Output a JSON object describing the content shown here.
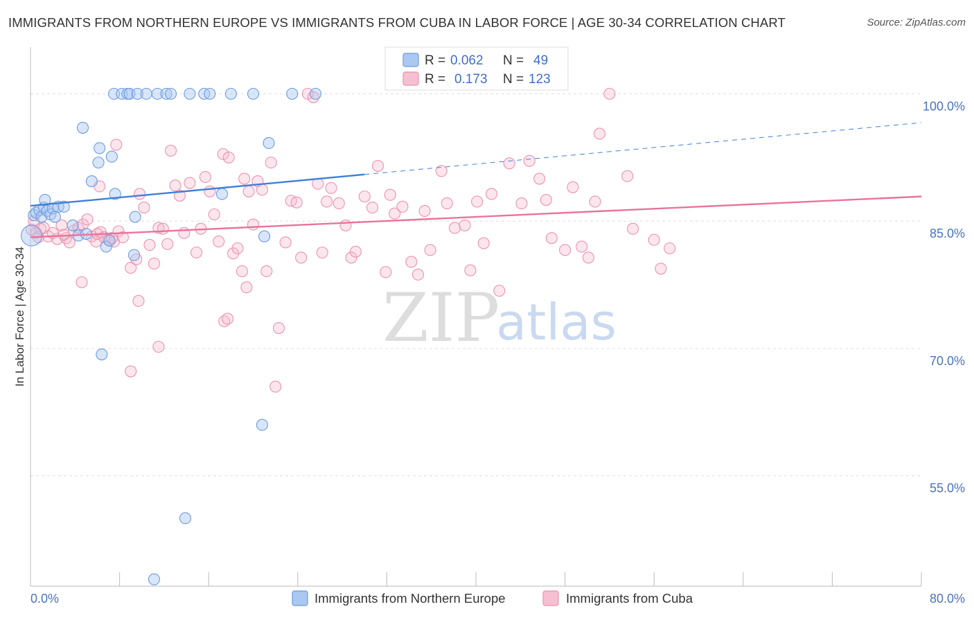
{
  "title": "IMMIGRANTS FROM NORTHERN EUROPE VS IMMIGRANTS FROM CUBA IN LABOR FORCE | AGE 30-34 CORRELATION CHART",
  "source": "Source: ZipAtlas.com",
  "watermark": {
    "zip": "ZIP",
    "atlas": "atlas"
  },
  "colors": {
    "blue": "#3f7fd8",
    "blue_fill": "#aac8f2",
    "pink": "#e8739c",
    "pink_fill": "#f6b7cc",
    "tick_text": "#4a72c4"
  },
  "legend": {
    "r_label": "R =",
    "n_label": "N =",
    "entries": [
      {
        "r": "0.062",
        "n": "49"
      },
      {
        "r": "0.173",
        "n": "123"
      }
    ]
  },
  "chart_data": {
    "type": "scatter",
    "title": "IMMIGRANTS FROM NORTHERN EUROPE VS IMMIGRANTS FROM CUBA IN LABOR FORCE | AGE 30-34 CORRELATION CHART",
    "xlabel": "",
    "ylabel": "In Labor Force | Age 30-34",
    "xlim": [
      0,
      80
    ],
    "ylim": [
      42,
      105.5
    ],
    "y_ticks": [
      {
        "value": 100,
        "label": "100.0%"
      },
      {
        "value": 85,
        "label": "85.0%"
      },
      {
        "value": 70,
        "label": "70.0%"
      },
      {
        "value": 55,
        "label": "55.0%"
      }
    ],
    "x_tick_labels": [
      {
        "value": 0,
        "label": "0.0%"
      },
      {
        "value": 80,
        "label": "80.0%"
      }
    ],
    "x_minor_ticks": [
      0,
      8,
      16,
      24,
      32,
      40,
      48,
      56,
      64,
      72,
      80
    ],
    "series": [
      {
        "name": "Immigrants from Northern Europe",
        "r": 0.062,
        "n": 49,
        "trend": {
          "x1": 0,
          "y1": 86.8,
          "x2": 30,
          "y2": 90.5,
          "dash_to_x": 80,
          "dash_to_y": 96.6
        },
        "points": [
          [
            0.1,
            83.3
          ],
          [
            0.3,
            85.7
          ],
          [
            0.5,
            86.0
          ],
          [
            0.8,
            86.3
          ],
          [
            1.0,
            85.5
          ],
          [
            1.2,
            86.6
          ],
          [
            1.3,
            87.5
          ],
          [
            1.5,
            86.2
          ],
          [
            1.8,
            85.8
          ],
          [
            2.0,
            86.5
          ],
          [
            2.2,
            85.5
          ],
          [
            2.5,
            86.7
          ],
          [
            3.0,
            86.7
          ],
          [
            3.8,
            84.5
          ],
          [
            4.3,
            83.3
          ],
          [
            5.0,
            83.5
          ],
          [
            4.7,
            96.0
          ],
          [
            6.2,
            93.6
          ],
          [
            6.1,
            91.9
          ],
          [
            5.5,
            89.7
          ],
          [
            7.3,
            92.6
          ],
          [
            7.6,
            88.2
          ],
          [
            6.8,
            82.0
          ],
          [
            7.1,
            82.7
          ],
          [
            6.4,
            69.3
          ],
          [
            9.4,
            85.5
          ],
          [
            9.3,
            81.0
          ],
          [
            11.1,
            42.8
          ],
          [
            13.9,
            50.0
          ],
          [
            15.6,
            100.0
          ],
          [
            17.2,
            88.2
          ],
          [
            20.0,
            100.0
          ],
          [
            21.4,
            94.2
          ],
          [
            20.8,
            61.0
          ],
          [
            21.0,
            83.2
          ],
          [
            7.5,
            100.0
          ],
          [
            8.2,
            100.0
          ],
          [
            8.7,
            100.0
          ],
          [
            8.9,
            100.0
          ],
          [
            9.6,
            100.0
          ],
          [
            10.4,
            100.0
          ],
          [
            11.4,
            100.0
          ],
          [
            12.2,
            100.0
          ],
          [
            12.6,
            100.0
          ],
          [
            14.3,
            100.0
          ],
          [
            16.1,
            100.0
          ],
          [
            18.0,
            100.0
          ],
          [
            23.5,
            100.0
          ],
          [
            25.6,
            100.0
          ]
        ]
      },
      {
        "name": "Immigrants from Cuba",
        "r": 0.173,
        "n": 123,
        "trend": {
          "x1": 0,
          "y1": 83.1,
          "x2": 80,
          "y2": 87.9
        },
        "points": [
          [
            0.1,
            84.0
          ],
          [
            0.3,
            85.0
          ],
          [
            0.5,
            83.6
          ],
          [
            0.7,
            83.1
          ],
          [
            0.9,
            84.1
          ],
          [
            1.2,
            84.2
          ],
          [
            1.6,
            83.2
          ],
          [
            2.0,
            83.6
          ],
          [
            2.4,
            82.9
          ],
          [
            2.8,
            84.5
          ],
          [
            3.2,
            83.0
          ],
          [
            3.5,
            82.5
          ],
          [
            3.9,
            83.9
          ],
          [
            4.3,
            84.2
          ],
          [
            4.7,
            84.6
          ],
          [
            5.1,
            85.2
          ],
          [
            5.5,
            83.2
          ],
          [
            5.9,
            82.6
          ],
          [
            6.3,
            83.7
          ],
          [
            6.6,
            83.1
          ],
          [
            7.0,
            82.8
          ],
          [
            7.5,
            82.6
          ],
          [
            7.9,
            83.8
          ],
          [
            8.3,
            83.1
          ],
          [
            9.0,
            79.5
          ],
          [
            9.5,
            80.5
          ],
          [
            9.8,
            88.2
          ],
          [
            10.2,
            86.6
          ],
          [
            10.7,
            82.2
          ],
          [
            11.1,
            80.0
          ],
          [
            11.5,
            84.2
          ],
          [
            11.9,
            84.1
          ],
          [
            12.3,
            82.3
          ],
          [
            12.6,
            93.3
          ],
          [
            13.0,
            89.2
          ],
          [
            13.4,
            88.0
          ],
          [
            13.8,
            83.6
          ],
          [
            14.3,
            89.5
          ],
          [
            14.9,
            81.3
          ],
          [
            15.3,
            84.1
          ],
          [
            15.7,
            90.2
          ],
          [
            16.1,
            88.5
          ],
          [
            16.5,
            85.8
          ],
          [
            16.9,
            82.6
          ],
          [
            17.3,
            92.9
          ],
          [
            17.8,
            92.5
          ],
          [
            18.2,
            81.2
          ],
          [
            18.6,
            81.8
          ],
          [
            19.0,
            79.1
          ],
          [
            19.2,
            90.0
          ],
          [
            19.6,
            88.5
          ],
          [
            20.0,
            84.6
          ],
          [
            20.4,
            89.7
          ],
          [
            20.8,
            88.7
          ],
          [
            21.2,
            79.1
          ],
          [
            21.6,
            91.9
          ],
          [
            22.3,
            72.4
          ],
          [
            22.9,
            82.5
          ],
          [
            23.4,
            87.4
          ],
          [
            23.9,
            87.2
          ],
          [
            24.3,
            80.7
          ],
          [
            24.9,
            100.0
          ],
          [
            25.4,
            99.6
          ],
          [
            25.8,
            89.4
          ],
          [
            26.2,
            81.3
          ],
          [
            26.6,
            87.3
          ],
          [
            27.0,
            88.9
          ],
          [
            27.7,
            87.1
          ],
          [
            28.3,
            84.5
          ],
          [
            28.8,
            80.7
          ],
          [
            29.2,
            81.4
          ],
          [
            30.0,
            87.9
          ],
          [
            30.7,
            86.6
          ],
          [
            31.2,
            91.5
          ],
          [
            31.9,
            79.0
          ],
          [
            32.3,
            88.1
          ],
          [
            32.7,
            85.9
          ],
          [
            33.4,
            86.7
          ],
          [
            34.2,
            80.2
          ],
          [
            34.8,
            78.7
          ],
          [
            35.4,
            86.2
          ],
          [
            35.9,
            81.6
          ],
          [
            36.9,
            90.9
          ],
          [
            37.4,
            87.1
          ],
          [
            38.1,
            84.2
          ],
          [
            39.0,
            84.5
          ],
          [
            39.5,
            79.2
          ],
          [
            40.1,
            87.3
          ],
          [
            40.7,
            82.4
          ],
          [
            41.4,
            88.2
          ],
          [
            42.1,
            76.8
          ],
          [
            43.0,
            91.8
          ],
          [
            44.1,
            87.1
          ],
          [
            44.8,
            92.1
          ],
          [
            45.7,
            90.0
          ],
          [
            46.3,
            87.5
          ],
          [
            46.8,
            83.0
          ],
          [
            48.0,
            81.6
          ],
          [
            48.7,
            89.0
          ],
          [
            49.5,
            82.0
          ],
          [
            50.1,
            80.7
          ],
          [
            50.7,
            87.3
          ],
          [
            51.1,
            95.3
          ],
          [
            52.0,
            100.0
          ],
          [
            53.6,
            90.3
          ],
          [
            54.1,
            84.1
          ],
          [
            56.0,
            82.8
          ],
          [
            56.6,
            79.4
          ],
          [
            57.4,
            81.8
          ],
          [
            7.7,
            94.0
          ],
          [
            6.2,
            89.1
          ],
          [
            4.6,
            77.8
          ],
          [
            9.7,
            75.6
          ],
          [
            9.0,
            67.3
          ],
          [
            11.5,
            70.2
          ],
          [
            17.4,
            73.2
          ],
          [
            17.7,
            73.5
          ],
          [
            19.4,
            77.2
          ],
          [
            22.0,
            65.5
          ],
          [
            6.0,
            83.5
          ],
          [
            7.3,
            83.0
          ],
          [
            3.0,
            83.4
          ]
        ]
      }
    ]
  }
}
